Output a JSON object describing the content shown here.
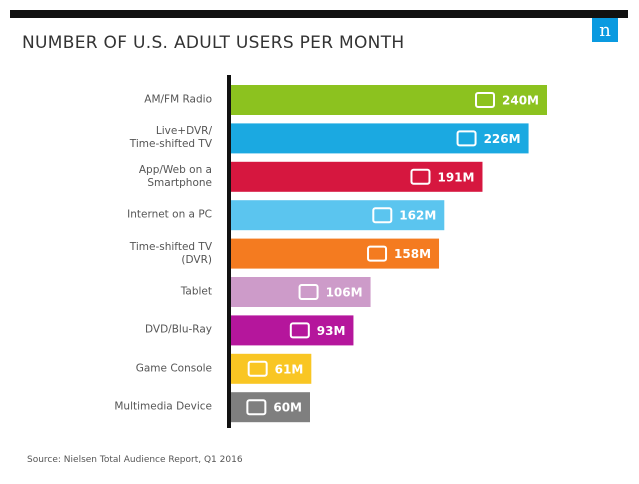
{
  "chart_data": {
    "type": "bar",
    "orientation": "horizontal",
    "title": "NUMBER OF U.S. ADULT USERS PER MONTH",
    "logo": "n",
    "categories": [
      "AM/FM Radio",
      "Live+DVR/\nTime-shifted TV",
      "App/Web on a\nSmartphone",
      "Internet on a PC",
      "Time-shifted TV\n(DVR)",
      "Tablet",
      "DVD/Blu-Ray",
      "Game Console",
      "Multimedia Device"
    ],
    "values": [
      240,
      226,
      191,
      162,
      158,
      106,
      93,
      61,
      60
    ],
    "value_labels": [
      "240M",
      "226M",
      "191M",
      "162M",
      "158M",
      "106M",
      "93M",
      "61M",
      "60M"
    ],
    "colors": [
      "#8cc21f",
      "#1ba9e1",
      "#d6173f",
      "#5bc5ef",
      "#f47b20",
      "#cd9bc9",
      "#b5169c",
      "#f9c623",
      "#7f7f7f"
    ],
    "source": "Source: Nielsen Total Audience Report, Q1 2016"
  }
}
